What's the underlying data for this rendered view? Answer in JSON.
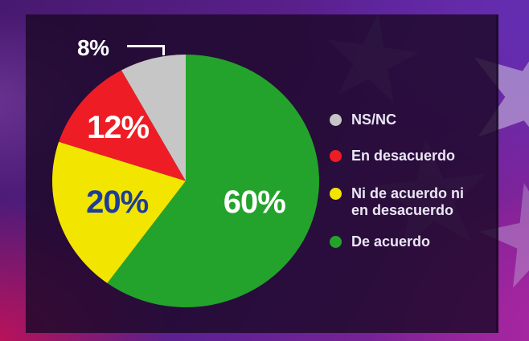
{
  "chart_data": {
    "type": "pie",
    "title": "",
    "unit": "%",
    "direction": "clockwise",
    "start_angle_deg": 0,
    "legend_position": "right",
    "slices": [
      {
        "name": "De acuerdo",
        "value": 60,
        "percent_label": "60%",
        "color": "#23a32b",
        "label_color": "#ffffff",
        "label_position": "inside"
      },
      {
        "name": "Ni de acuerdo ni en desacuerdo",
        "value": 20,
        "percent_label": "20%",
        "color": "#f2e500",
        "label_color": "#1d3d99",
        "label_position": "inside"
      },
      {
        "name": "En desacuerdo",
        "value": 12,
        "percent_label": "12%",
        "color": "#ee1d25",
        "label_color": "#ffffff",
        "label_position": "inside"
      },
      {
        "name": "NS/NC",
        "value": 8,
        "percent_label": "8%",
        "color": "#c7c6c6",
        "label_color": "#ffffff",
        "label_position": "outside"
      }
    ]
  },
  "legend": {
    "items": [
      {
        "label": "NS/NC",
        "color": "#c7c6c6"
      },
      {
        "label": "En desacuerdo",
        "color": "#ee1d25"
      },
      {
        "label": "Ni de acuerdo ni en desacuerdo",
        "color": "#f2e500"
      },
      {
        "label": "De acuerdo",
        "color": "#23a32b"
      }
    ]
  },
  "colors": {
    "panel_bg": "rgba(28,8,40,0.82)",
    "legend_text": "#eae6f4",
    "background_accent_magenta": "#c71155",
    "background_accent_violet": "#602fb6"
  }
}
